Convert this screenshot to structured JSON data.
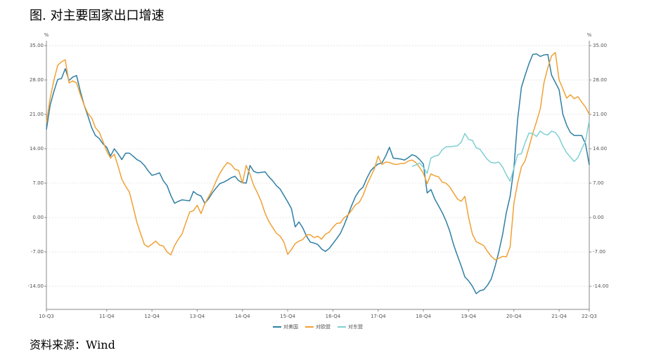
{
  "title": "图. 对主要国家出口增速",
  "source": "资料来源：Wind",
  "chart_data": {
    "type": "line",
    "y_unit": "%",
    "y2_unit": "%",
    "categories": [
      "10-Q3",
      null,
      null,
      null,
      null,
      null,
      null,
      null,
      null,
      null,
      null,
      null,
      null,
      null,
      null,
      null,
      "11-Q4",
      null,
      null,
      null,
      null,
      null,
      null,
      null,
      null,
      null,
      null,
      null,
      "12-Q4",
      null,
      null,
      null,
      null,
      null,
      null,
      null,
      null,
      null,
      null,
      null,
      "13-Q4",
      null,
      null,
      null,
      null,
      null,
      null,
      null,
      null,
      null,
      null,
      null,
      "14-Q4",
      null,
      null,
      null,
      null,
      null,
      null,
      null,
      null,
      null,
      null,
      null,
      "15-Q4",
      null,
      null,
      null,
      null,
      null,
      null,
      null,
      null,
      null,
      null,
      null,
      "16-Q4",
      null,
      null,
      null,
      null,
      null,
      null,
      null,
      null,
      null,
      null,
      null,
      "17-Q4",
      null,
      null,
      null,
      null,
      null,
      null,
      null,
      null,
      null,
      null,
      null,
      "18-Q4",
      null,
      null,
      null,
      null,
      null,
      null,
      null,
      null,
      null,
      null,
      null,
      "19-Q4",
      null,
      null,
      null,
      null,
      null,
      null,
      null,
      null,
      null,
      null,
      null,
      "20-Q4",
      null,
      null,
      null,
      null,
      null,
      null,
      null,
      null,
      null,
      null,
      null,
      "21-Q4",
      null,
      null,
      null,
      null,
      null,
      null,
      null,
      "22-Q3"
    ],
    "series": [
      {
        "name": "对美国",
        "color": "#2f7fa4",
        "values": [
          17.9,
          22.9,
          25.7,
          28.1,
          28.3,
          30.3,
          27.9,
          28.6,
          28.9,
          25.7,
          22.9,
          20.7,
          18.3,
          16.7,
          16.1,
          15,
          14.3,
          12.5,
          14,
          13,
          11.8,
          13.1,
          13.1,
          12.5,
          11.8,
          11.4,
          10.6,
          9.5,
          8.6,
          8.8,
          9.1,
          7.5,
          6.5,
          4.5,
          2.9,
          3.3,
          3.6,
          3.5,
          3.4,
          5.3,
          4.7,
          4.4,
          2.9,
          3.8,
          5,
          6,
          6.9,
          7.2,
          7.6,
          8.1,
          8.4,
          7.5,
          7.1,
          7,
          10.6,
          9.4,
          9.1,
          9.2,
          9.3,
          8.3,
          7.5,
          6.5,
          5.8,
          4.5,
          3.2,
          1.8,
          -1.9,
          -0.9,
          -2.1,
          -3.8,
          -5,
          -5.2,
          -5.5,
          -6.4,
          -6.9,
          -6.3,
          -5.3,
          -4.3,
          -3.2,
          -1.5,
          0.5,
          2.5,
          4.3,
          5.5,
          6.2,
          8,
          9.5,
          10.3,
          10.9,
          11.1,
          12.5,
          14.3,
          12.1,
          12,
          11.9,
          11.7,
          12.2,
          12.8,
          12.5,
          11.8,
          10.9,
          5,
          5.7,
          3.8,
          2.4,
          1,
          -0.7,
          -2.8,
          -5.5,
          -7.7,
          -9.8,
          -12.1,
          -12.9,
          -14,
          -15.5,
          -14.9,
          -14.7,
          -13.8,
          -12.5,
          -10,
          -7,
          -3.5,
          1,
          4.3,
          10,
          20,
          26.5,
          29,
          31.3,
          33.2,
          33.3,
          32.8,
          33.1,
          33.2,
          29,
          27.5,
          26,
          21,
          18.8,
          17.3,
          16.7,
          16.7,
          16.7,
          15,
          10.7
        ]
      },
      {
        "name": "对欧盟",
        "color": "#f0a135",
        "values": [
          19.3,
          24.3,
          28,
          31,
          31.7,
          32.1,
          27.4,
          27.8,
          27.4,
          25,
          22.9,
          21.2,
          20.3,
          18.3,
          17.4,
          15.5,
          13.5,
          12.1,
          12.9,
          10.5,
          7.8,
          6.4,
          5.2,
          2.2,
          -1,
          -3.3,
          -5.5,
          -6,
          -5.4,
          -4.8,
          -5.6,
          -5.8,
          -7,
          -7.6,
          -5.7,
          -4.4,
          -3.3,
          -1,
          1.1,
          1.4,
          2.5,
          0.8,
          2.8,
          4.2,
          5.6,
          7.4,
          9,
          10.2,
          11.2,
          10.8,
          9.8,
          9.6,
          7,
          10.6,
          8.8,
          6.5,
          5,
          3.2,
          0.9,
          -0.8,
          -2,
          -3.2,
          -3.8,
          -5,
          -7.5,
          -6.5,
          -5.3,
          -4.8,
          -4.5,
          -3.5,
          -3.5,
          -4.1,
          -3.8,
          -4.4,
          -3.4,
          -3,
          -2,
          -1.2,
          -1.1,
          0,
          0.5,
          1.5,
          2.6,
          3.1,
          4.5,
          6.6,
          8.3,
          9.9,
          12.5,
          10.8,
          11.3,
          11.2,
          10.9,
          10.8,
          11,
          11,
          11.5,
          11.7,
          11.2,
          10.2,
          9,
          6.9,
          8.9,
          8.5,
          8.3,
          7.2,
          7,
          6.2,
          5,
          3.8,
          3.3,
          4.3,
          0,
          -3.4,
          -4.9,
          -5.3,
          -5.7,
          -6.9,
          -7.9,
          -8.6,
          -8.3,
          -7.9,
          -8,
          -6,
          2.9,
          7,
          10.3,
          11.6,
          14.3,
          17.1,
          19.5,
          22.1,
          27.5,
          30.5,
          32.9,
          33.6,
          28,
          26.2,
          24.3,
          25,
          24.2,
          24.6,
          23.5,
          22.5,
          21
        ]
      },
      {
        "name": "对东盟",
        "color": "#7fcfd2",
        "values": [
          null,
          null,
          null,
          null,
          null,
          null,
          null,
          null,
          null,
          null,
          null,
          null,
          null,
          null,
          null,
          null,
          null,
          null,
          null,
          null,
          null,
          null,
          null,
          null,
          null,
          null,
          null,
          null,
          null,
          null,
          null,
          null,
          null,
          null,
          null,
          null,
          null,
          null,
          null,
          null,
          null,
          null,
          null,
          null,
          null,
          null,
          null,
          null,
          null,
          null,
          null,
          null,
          null,
          null,
          null,
          null,
          null,
          null,
          null,
          null,
          null,
          null,
          null,
          null,
          null,
          null,
          null,
          null,
          null,
          null,
          null,
          null,
          null,
          null,
          null,
          null,
          null,
          null,
          null,
          null,
          null,
          null,
          null,
          null,
          null,
          null,
          null,
          null,
          null,
          null,
          null,
          null,
          null,
          null,
          null,
          null,
          null,
          10.4,
          10.7,
          11.1,
          10.2,
          9,
          12.1,
          12.5,
          12.7,
          13.8,
          14.4,
          14.4,
          14.5,
          14.6,
          15.3,
          17.1,
          15.9,
          15.7,
          14.2,
          13.9,
          12.8,
          11.8,
          11.2,
          11.1,
          11.3,
          10.3,
          8.7,
          7.4,
          10,
          12.8,
          13,
          15.3,
          17.2,
          17.1,
          16.5,
          17.6,
          17,
          16.8,
          17.6,
          17.3,
          16.3,
          14.5,
          13.2,
          12.3,
          11.4,
          12.2,
          14,
          15.5,
          19.7
        ]
      }
    ],
    "ylim": [
      -18.7,
      36
    ],
    "y2lim": [
      -18.7,
      36
    ],
    "yticks": [
      {
        "value": 35,
        "label": "35.00"
      },
      {
        "value": 28,
        "label": "28.00"
      },
      {
        "value": 21,
        "label": "21.00"
      },
      {
        "value": 14,
        "label": "14.00"
      },
      {
        "value": 7,
        "label": "7.00"
      },
      {
        "value": 0,
        "label": "0.00"
      },
      {
        "value": -7,
        "label": "-7.00"
      },
      {
        "value": -14,
        "label": "-14.00"
      }
    ],
    "y2ticks": [
      {
        "value": 35,
        "label": "35.00"
      },
      {
        "value": 28,
        "label": "28.00"
      },
      {
        "value": 21,
        "label": "21.00"
      },
      {
        "value": 14,
        "label": "14.00"
      },
      {
        "value": 7,
        "label": "7.00"
      },
      {
        "value": 0,
        "label": "0.00"
      },
      {
        "value": -7,
        "label": "-7.00"
      },
      {
        "value": -14,
        "label": "-14.00"
      }
    ],
    "grid": true,
    "legend": "bottom"
  }
}
